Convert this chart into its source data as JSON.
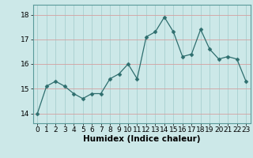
{
  "title": "",
  "xlabel": "Humidex (Indice chaleur)",
  "ylabel": "",
  "x": [
    0,
    1,
    2,
    3,
    4,
    5,
    6,
    7,
    8,
    9,
    10,
    11,
    12,
    13,
    14,
    15,
    16,
    17,
    18,
    19,
    20,
    21,
    22,
    23
  ],
  "y": [
    14.0,
    15.1,
    15.3,
    15.1,
    14.8,
    14.6,
    14.8,
    14.8,
    15.4,
    15.6,
    16.0,
    15.4,
    17.1,
    17.3,
    17.9,
    17.3,
    16.3,
    16.4,
    17.4,
    16.6,
    16.2,
    16.3,
    16.2,
    15.3
  ],
  "line_color": "#2e6e6e",
  "marker_color": "#2e6e6e",
  "bg_color": "#cce8e8",
  "grid_color_x": "#a8d0d0",
  "grid_color_y": "#d4a0a0",
  "ylim_min": 13.6,
  "ylim_max": 18.4,
  "yticks": [
    14,
    15,
    16,
    17,
    18
  ],
  "xticks": [
    0,
    1,
    2,
    3,
    4,
    5,
    6,
    7,
    8,
    9,
    10,
    11,
    12,
    13,
    14,
    15,
    16,
    17,
    18,
    19,
    20,
    21,
    22,
    23
  ],
  "label_fontsize": 7.5,
  "tick_fontsize": 6.5,
  "linewidth": 0.9,
  "markersize": 2.5
}
